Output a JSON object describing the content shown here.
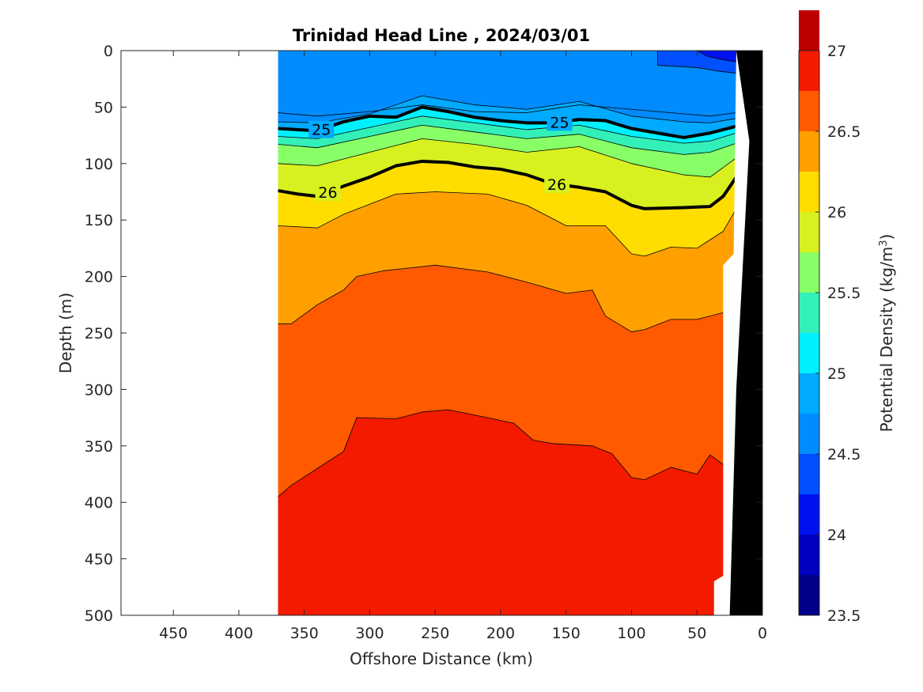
{
  "chart_data": {
    "type": "contourf",
    "title": "Trinidad Head Line , 2024/03/01",
    "xlabel": "Offshore Distance (km)",
    "ylabel": "Depth (m)",
    "colorbar_label": "Potential Density (kg/m",
    "colorbar_label_sup": "3",
    "colorbar_label_close": ")",
    "xlim": [
      490,
      0
    ],
    "xreversed": true,
    "ylim": [
      0,
      500
    ],
    "yreversed": true,
    "x_ticks": [
      450,
      400,
      350,
      300,
      250,
      200,
      150,
      100,
      50,
      0
    ],
    "y_ticks": [
      0,
      50,
      100,
      150,
      200,
      250,
      300,
      350,
      400,
      450,
      500
    ],
    "colorbar_ticks": [
      23.5,
      24,
      24.5,
      25,
      25.5,
      26,
      26.5,
      27
    ],
    "colorbar_range": [
      23.5,
      27
    ],
    "level_step": 0.25,
    "colors": [
      "#000088",
      "#0000BE",
      "#0011F0",
      "#0050FF",
      "#008CFF",
      "#00AAFF",
      "#00F0FF",
      "#33F0B8",
      "#88FF66",
      "#D8F020",
      "#FFDD00",
      "#FFA000",
      "#FF5A00",
      "#F41A00",
      "#BC0000"
    ],
    "data_extent_km": [
      370,
      20
    ],
    "labeled_contours": [
      {
        "value": 25,
        "label": "25",
        "x": [
          370,
          355,
          340,
          320,
          300,
          280,
          260,
          240,
          220,
          200,
          180,
          160,
          140,
          120,
          100,
          80,
          60,
          40,
          20
        ],
        "depth": [
          69,
          70,
          71,
          63,
          58,
          59,
          50,
          54,
          59,
          62,
          64,
          64,
          61,
          62,
          69,
          73,
          77,
          73,
          67
        ]
      },
      {
        "value": 26,
        "label": "26",
        "x": [
          370,
          355,
          340,
          320,
          300,
          280,
          260,
          240,
          220,
          200,
          180,
          160,
          140,
          120,
          100,
          90,
          60,
          40,
          30,
          20
        ],
        "depth": [
          124,
          127,
          129,
          120,
          112,
          102,
          98,
          99,
          103,
          105,
          110,
          118,
          121,
          125,
          137,
          140,
          139,
          138,
          129,
          112
        ]
      }
    ],
    "boundaries": [
      {
        "value": 24.5,
        "points": [
          [
            370,
            55
          ],
          [
            340,
            58
          ],
          [
            300,
            54
          ],
          [
            260,
            48
          ],
          [
            220,
            54
          ],
          [
            180,
            55
          ],
          [
            140,
            48
          ],
          [
            100,
            52
          ],
          [
            60,
            56
          ],
          [
            40,
            58
          ],
          [
            20,
            55
          ]
        ]
      },
      {
        "value": 24.75,
        "points": [
          [
            370,
            63
          ],
          [
            340,
            64
          ],
          [
            300,
            56
          ],
          [
            260,
            40
          ],
          [
            220,
            48
          ],
          [
            180,
            52
          ],
          [
            140,
            45
          ],
          [
            100,
            58
          ],
          [
            60,
            63
          ],
          [
            40,
            64
          ],
          [
            20,
            60
          ]
        ]
      },
      {
        "value": 25.25,
        "points": [
          [
            370,
            76
          ],
          [
            340,
            78
          ],
          [
            300,
            68
          ],
          [
            260,
            58
          ],
          [
            220,
            64
          ],
          [
            180,
            70
          ],
          [
            140,
            66
          ],
          [
            100,
            76
          ],
          [
            60,
            82
          ],
          [
            40,
            80
          ],
          [
            20,
            73
          ]
        ]
      },
      {
        "value": 25.5,
        "points": [
          [
            370,
            83
          ],
          [
            340,
            86
          ],
          [
            300,
            76
          ],
          [
            260,
            66
          ],
          [
            220,
            72
          ],
          [
            180,
            78
          ],
          [
            140,
            74
          ],
          [
            100,
            86
          ],
          [
            60,
            92
          ],
          [
            40,
            90
          ],
          [
            20,
            82
          ]
        ]
      },
      {
        "value": 25.75,
        "points": [
          [
            370,
            100
          ],
          [
            340,
            102
          ],
          [
            300,
            90
          ],
          [
            260,
            78
          ],
          [
            220,
            83
          ],
          [
            180,
            90
          ],
          [
            140,
            85
          ],
          [
            100,
            100
          ],
          [
            60,
            110
          ],
          [
            40,
            112
          ],
          [
            20,
            95
          ]
        ]
      },
      {
        "value": 26.25,
        "points": [
          [
            370,
            155
          ],
          [
            340,
            157
          ],
          [
            320,
            145
          ],
          [
            280,
            127
          ],
          [
            250,
            125
          ],
          [
            210,
            127
          ],
          [
            180,
            137
          ],
          [
            150,
            155
          ],
          [
            120,
            155
          ],
          [
            100,
            180
          ],
          [
            90,
            182
          ],
          [
            70,
            174
          ],
          [
            50,
            175
          ],
          [
            30,
            160
          ],
          [
            20,
            140
          ]
        ]
      },
      {
        "value": 26.5,
        "points": [
          [
            370,
            242
          ],
          [
            360,
            242
          ],
          [
            340,
            225
          ],
          [
            320,
            212
          ],
          [
            310,
            200
          ],
          [
            290,
            195
          ],
          [
            250,
            190
          ],
          [
            210,
            196
          ],
          [
            180,
            205
          ],
          [
            150,
            215
          ],
          [
            130,
            212
          ],
          [
            120,
            235
          ],
          [
            100,
            249
          ],
          [
            90,
            247
          ],
          [
            70,
            238
          ],
          [
            50,
            238
          ],
          [
            30,
            232
          ],
          [
            20,
            230
          ]
        ]
      },
      {
        "value": 26.75,
        "points": [
          [
            370,
            395
          ],
          [
            360,
            385
          ],
          [
            340,
            370
          ],
          [
            320,
            355
          ],
          [
            310,
            325
          ],
          [
            280,
            326
          ],
          [
            260,
            320
          ],
          [
            240,
            318
          ],
          [
            210,
            325
          ],
          [
            190,
            330
          ],
          [
            175,
            345
          ],
          [
            160,
            348
          ],
          [
            130,
            350
          ],
          [
            115,
            357
          ],
          [
            100,
            378
          ],
          [
            90,
            380
          ],
          [
            70,
            369
          ],
          [
            50,
            375
          ],
          [
            40,
            358
          ],
          [
            20,
            375
          ]
        ]
      }
    ],
    "surface_patch": {
      "value": 24.25,
      "points": [
        [
          80,
          0
        ],
        [
          60,
          0
        ],
        [
          40,
          0
        ],
        [
          20,
          0
        ],
        [
          20,
          20
        ],
        [
          35,
          18
        ],
        [
          50,
          15
        ],
        [
          80,
          13
        ]
      ]
    },
    "surface_patch2": {
      "value": 24.0,
      "points": [
        [
          50,
          0
        ],
        [
          35,
          0
        ],
        [
          20,
          0
        ],
        [
          20,
          10
        ],
        [
          30,
          8
        ],
        [
          42,
          5
        ]
      ]
    },
    "bathymetry_km": [
      [
        0,
        0
      ],
      [
        20,
        0
      ],
      [
        10,
        80
      ],
      [
        20,
        300
      ],
      [
        25,
        500
      ],
      [
        0,
        500
      ]
    ]
  }
}
